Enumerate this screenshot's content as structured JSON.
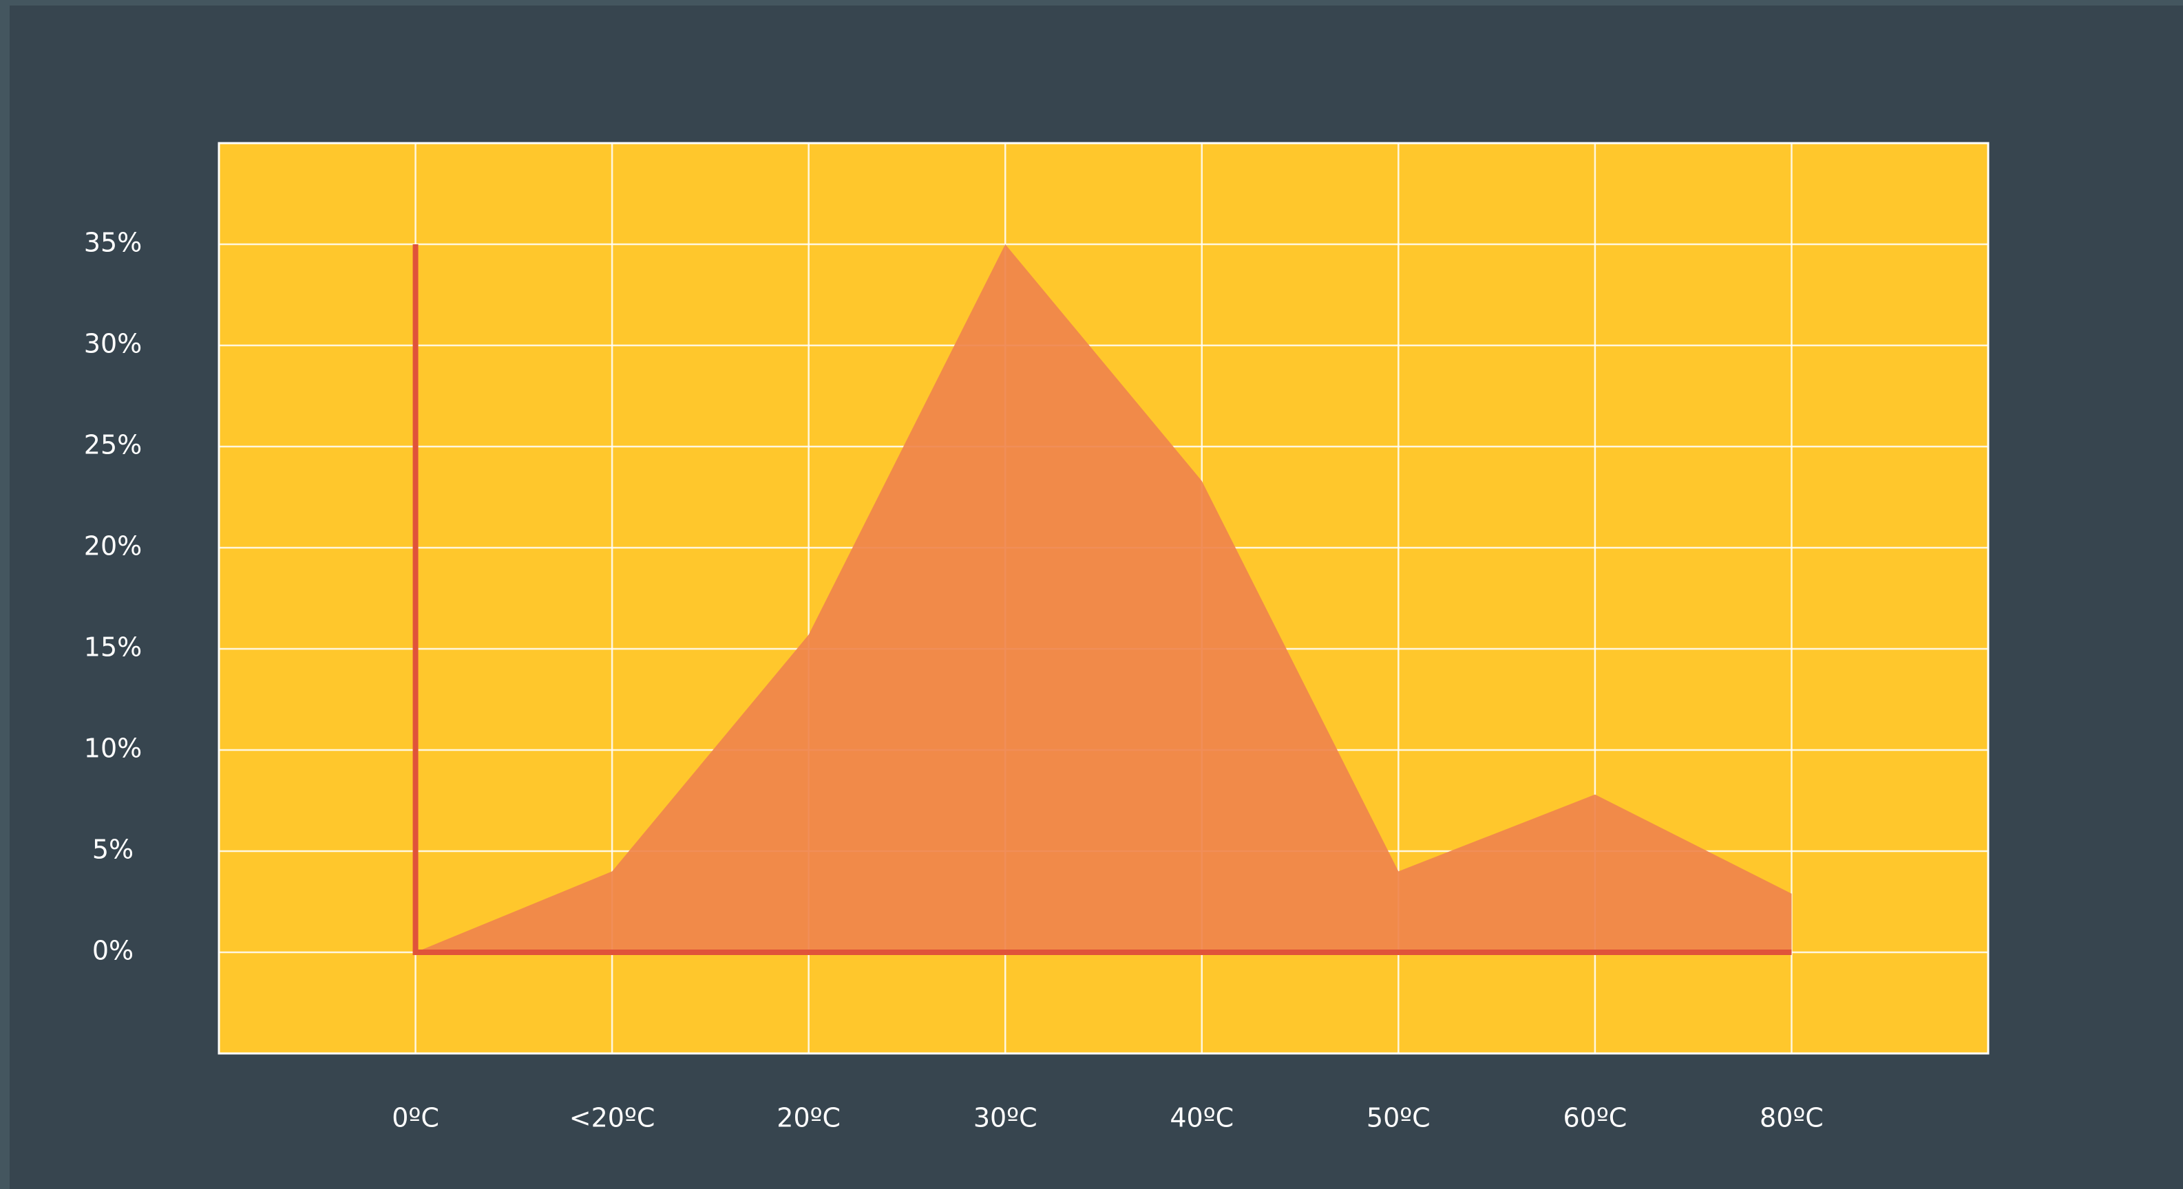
{
  "chart_data": {
    "type": "area",
    "categories": [
      "0ºC",
      "<20ºC",
      "20ºC",
      "30ºC",
      "40ºC",
      "50ºC",
      "60ºC",
      "80ºC"
    ],
    "values": [
      0,
      4,
      15.7,
      35,
      23.3,
      4,
      7.8,
      2.9
    ],
    "color": "#f0844c",
    "axis_color": "#e0533a",
    "plot_background": "#ffc72c",
    "ylim": [
      -5,
      40
    ],
    "yticks": [
      {
        "value": 0,
        "label": "0%"
      },
      {
        "value": 5,
        "label": "5%"
      },
      {
        "value": 10,
        "label": "10%"
      },
      {
        "value": 15,
        "label": "15%"
      },
      {
        "value": 20,
        "label": "20%"
      },
      {
        "value": 25,
        "label": "25%"
      },
      {
        "value": 30,
        "label": "30%"
      },
      {
        "value": 35,
        "label": "35%"
      }
    ],
    "grid": true
  }
}
